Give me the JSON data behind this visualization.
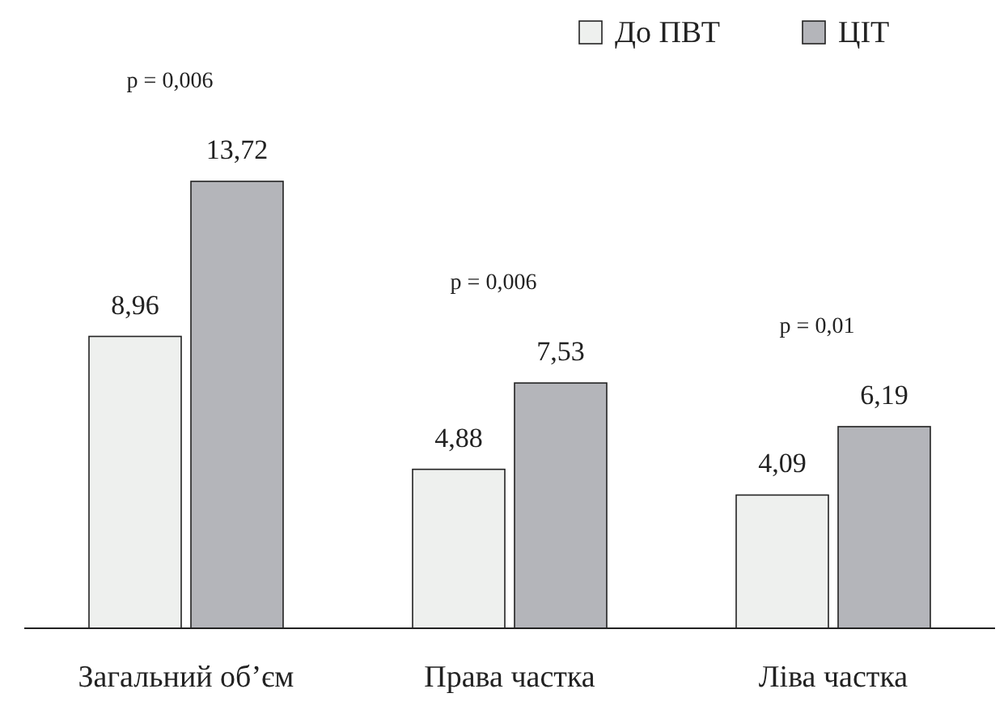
{
  "chart_data": {
    "type": "bar",
    "categories": [
      "Загальний об’єм",
      "Права частка",
      "Ліва частка"
    ],
    "series": [
      {
        "name": "До ПВТ",
        "color": "#eef0ee",
        "values": [
          8.96,
          4.88,
          4.09
        ],
        "value_labels": [
          "8,96",
          "4,88",
          "4,09"
        ]
      },
      {
        "name": "ЦІТ",
        "color": "#b4b5ba",
        "values": [
          13.72,
          7.53,
          6.19
        ],
        "value_labels": [
          "13,72",
          "7,53",
          "6,19"
        ]
      }
    ],
    "legend": "top right",
    "annotations": [
      "p = 0,006",
      "p = 0,006",
      "p = 0,01"
    ]
  }
}
